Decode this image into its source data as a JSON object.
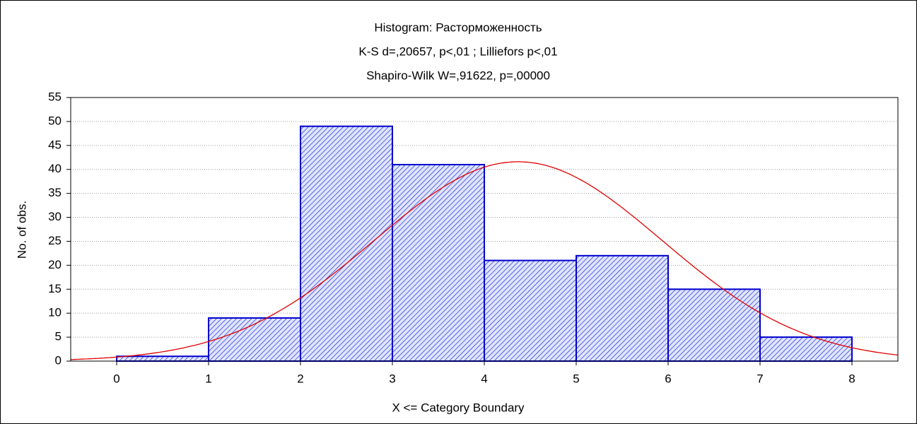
{
  "chart_data": {
    "type": "histogram",
    "title": "Histogram: Расторможенность",
    "subtitle": [
      "K-S d=,20657, p<,01 ; Lilliefors p<,01",
      "Shapiro-Wilk W=,91622, p=,00000"
    ],
    "xlabel": "X <= Category Boundary",
    "ylabel": "No. of obs.",
    "bins": [
      0,
      1,
      2,
      3,
      4,
      5,
      6,
      7,
      8
    ],
    "values": [
      1,
      9,
      49,
      41,
      21,
      22,
      15,
      5
    ],
    "color": "#0000cc",
    "fit_color": "#e00000",
    "xlim": [
      -0.5,
      8.5
    ],
    "xticks": [
      0,
      1,
      2,
      3,
      4,
      5,
      6,
      7,
      8
    ],
    "ylim": [
      0,
      55
    ],
    "yticks": [
      0,
      5,
      10,
      15,
      20,
      25,
      30,
      35,
      40,
      45,
      50,
      55
    ],
    "grid": true
  }
}
